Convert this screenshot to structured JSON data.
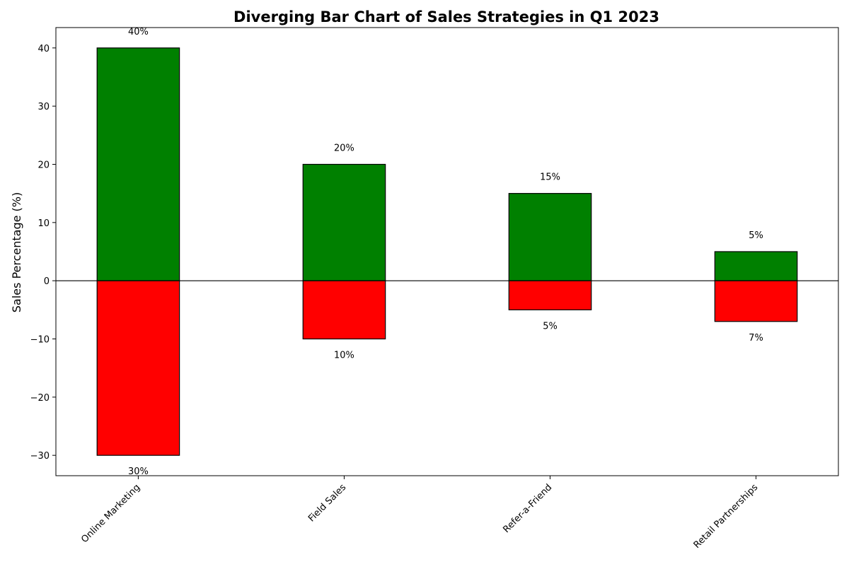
{
  "chart_data": {
    "type": "bar",
    "title": "Diverging Bar Chart of Sales Strategies in Q1 2023",
    "xlabel": "",
    "ylabel": "Sales Percentage (%)",
    "categories": [
      "Online Marketing",
      "Field Sales",
      "Refer-a-Friend",
      "Retail Partnerships"
    ],
    "series": [
      {
        "color": "#008000",
        "values": [
          40,
          20,
          15,
          5
        ]
      },
      {
        "color": "#ff0000",
        "values": [
          -30,
          -10,
          -5,
          -7
        ]
      }
    ],
    "positive_labels": [
      "40%",
      "20%",
      "15%",
      "5%"
    ],
    "negative_labels": [
      "30%",
      "10%",
      "5%",
      "7%"
    ],
    "ylim": [
      -33.5,
      43.5
    ],
    "yticks": [
      -30,
      -20,
      -10,
      0,
      10,
      20,
      30,
      40
    ],
    "ytick_labels": [
      "−30",
      "−20",
      "−10",
      "0",
      "10",
      "20",
      "30",
      "40"
    ],
    "grid": false,
    "zero_line": true,
    "bar_edge_color": "#000000"
  }
}
